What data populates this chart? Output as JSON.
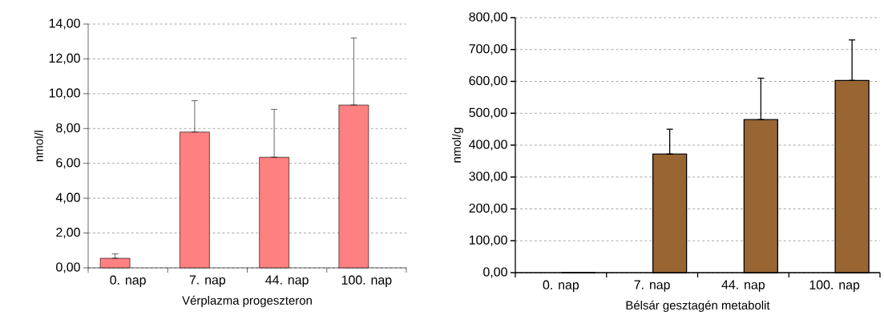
{
  "chart_data": [
    {
      "type": "bar",
      "xlabel": "Vérplazma progeszteron",
      "ylabel": "nmol/l",
      "categories": [
        "0. nap",
        "7. nap",
        "44. nap",
        "100. nap"
      ],
      "values": [
        0.55,
        7.8,
        6.35,
        9.35
      ],
      "errors": [
        [
          0.55,
          0.8
        ],
        [
          7.8,
          9.6
        ],
        [
          6.35,
          9.1
        ],
        [
          9.35,
          13.2
        ]
      ],
      "color": "#ff8080",
      "ylim": [
        0,
        14
      ],
      "yticks": [
        {
          "value": 0,
          "label": "0,00"
        },
        {
          "value": 2,
          "label": "2,00"
        },
        {
          "value": 4,
          "label": "4,00"
        },
        {
          "value": 6,
          "label": "6,00"
        },
        {
          "value": 8,
          "label": "8,00"
        },
        {
          "value": 10,
          "label": "10,00"
        },
        {
          "value": 12,
          "label": "12,00"
        },
        {
          "value": 14,
          "label": "14,00"
        }
      ],
      "grid": "y"
    },
    {
      "type": "bar",
      "xlabel": "Bélsár gesztagén metabolit",
      "ylabel": "nmol/g",
      "categories": [
        "0. nap",
        "7. nap",
        "44. nap",
        "100. nap"
      ],
      "values": [
        0,
        372,
        480,
        603
      ],
      "errors": [
        null,
        [
          372,
          450
        ],
        [
          480,
          610
        ],
        [
          603,
          730
        ]
      ],
      "color": "#996633",
      "ylim": [
        0,
        800
      ],
      "yticks": [
        {
          "value": 0,
          "label": "0,00"
        },
        {
          "value": 100,
          "label": "100,00"
        },
        {
          "value": 200,
          "label": "200,00"
        },
        {
          "value": 300,
          "label": "300,00"
        },
        {
          "value": 400,
          "label": "400,00"
        },
        {
          "value": 500,
          "label": "500,00"
        },
        {
          "value": 600,
          "label": "600,00"
        },
        {
          "value": 700,
          "label": "700,00"
        },
        {
          "value": 800,
          "label": "800,00"
        }
      ],
      "grid": "y"
    }
  ]
}
